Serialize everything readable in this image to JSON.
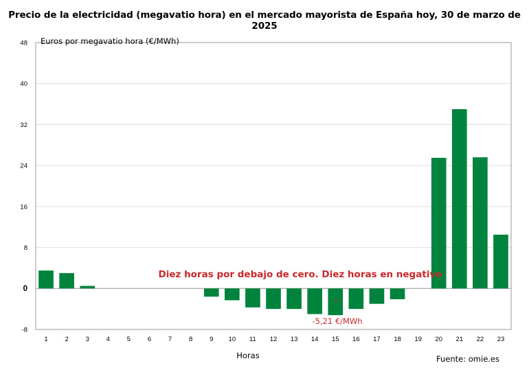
{
  "chart_data": {
    "type": "bar",
    "title": "Precio de la electricidad (megavatio hora) en el mercado mayorista de España hoy, 30 de marzo de 2025",
    "ylabel": "Euros por megavatio hora (€/MWh)",
    "xlabel": "Horas",
    "ylim": [
      -8,
      48
    ],
    "yticks": [
      "48",
      "40",
      "32",
      "24",
      "16",
      "8",
      "0",
      "-8"
    ],
    "grid": true,
    "bar_color": "#00843d",
    "categories": [
      "1",
      "2",
      "3",
      "4",
      "5",
      "6",
      "7",
      "8",
      "9",
      "10",
      "11",
      "12",
      "13",
      "14",
      "15",
      "16",
      "17",
      "18",
      "19",
      "20",
      "21",
      "22",
      "23"
    ],
    "values": [
      3.5,
      3.0,
      0.5,
      0,
      0,
      0,
      0,
      0,
      -1.6,
      -2.3,
      -3.7,
      -4.0,
      -4.0,
      -5.0,
      -5.21,
      -4.0,
      -3.0,
      -2.1,
      0,
      25.5,
      35.0,
      25.6,
      10.5
    ],
    "annotation": "Diez horas por debajo de cero. Diez horas en negativo",
    "annotation_color": "#c8282a",
    "min_label": "-5,21 €/MWh",
    "min_marker": "*",
    "source": "Fuente: omie.es"
  }
}
